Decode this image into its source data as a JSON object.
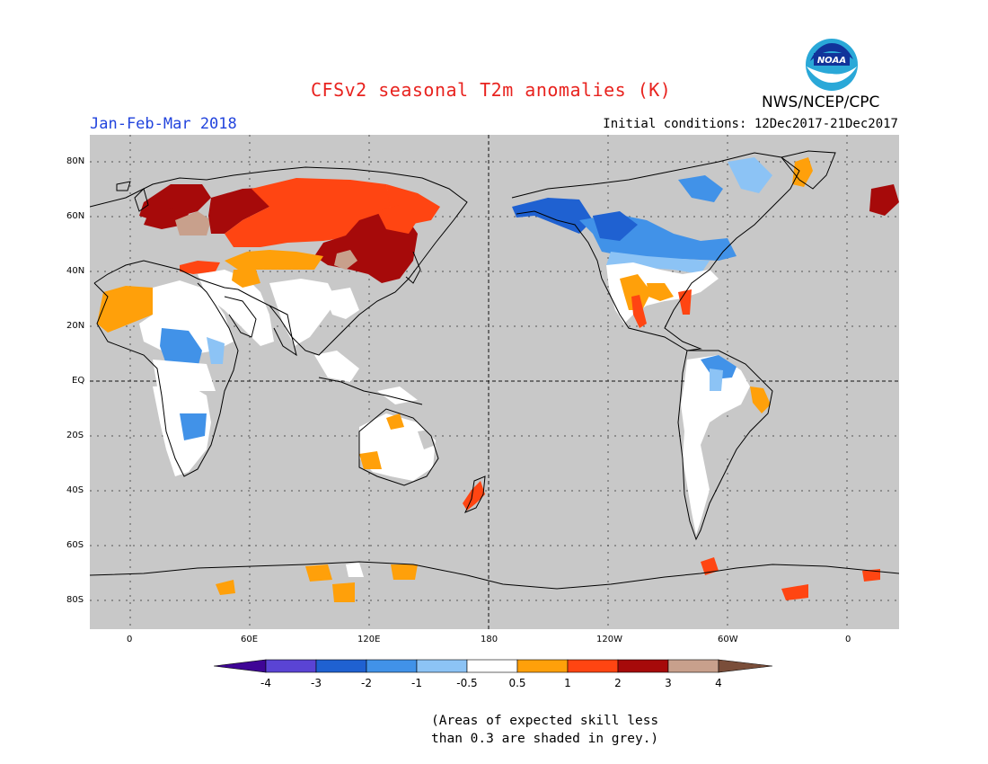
{
  "header": {
    "title": "CFSv2 seasonal T2m anomalies (K)",
    "period": "Jan-Feb-Mar 2018",
    "initial_conditions": "Initial conditions: 12Dec2017-21Dec2017",
    "agency": "NWS/NCEP/CPC",
    "logo_text": "NOAA"
  },
  "map": {
    "lat_labels": [
      "80N",
      "60N",
      "40N",
      "20N",
      "EQ",
      "20S",
      "40S",
      "60S",
      "80S"
    ],
    "lon_labels": [
      "0",
      "60E",
      "120E",
      "180",
      "120W",
      "60W",
      "0"
    ],
    "background_color": "#c8c8c8"
  },
  "colorbar": {
    "tick_labels": [
      "-4",
      "-3",
      "-2",
      "-1",
      "-0.5",
      "0.5",
      "1",
      "2",
      "3",
      "4"
    ],
    "colors": [
      "#3f0596",
      "#5a44d4",
      "#1f61d1",
      "#4192e8",
      "#8cc3f5",
      "#ffffff",
      "#ffa00a",
      "#ff4512",
      "#a60a0a",
      "#c8a08c",
      "#7a4e3a"
    ]
  },
  "note": {
    "line1": "(Areas of expected skill less",
    "line2": "than 0.3 are shaded in grey.)"
  }
}
